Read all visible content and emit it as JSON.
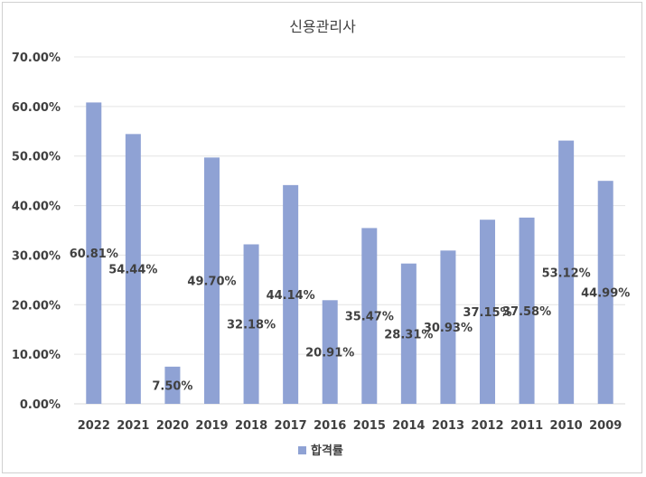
{
  "chart_data": {
    "type": "bar",
    "title": "신용관리사",
    "categories": [
      "2022",
      "2021",
      "2020",
      "2019",
      "2018",
      "2017",
      "2016",
      "2015",
      "2014",
      "2013",
      "2012",
      "2011",
      "2010",
      "2009"
    ],
    "series": [
      {
        "name": "합격률",
        "values": [
          60.81,
          54.44,
          7.5,
          49.7,
          32.18,
          44.14,
          20.91,
          35.47,
          28.31,
          30.93,
          37.15,
          37.58,
          53.12,
          44.99
        ],
        "labels": [
          "60.81%",
          "54.44%",
          "7.50%",
          "49.70%",
          "32.18%",
          "44.14%",
          "20.91%",
          "35.47%",
          "28.31%",
          "30.93%",
          "37.15%",
          "37.58%",
          "53.12%",
          "44.99%"
        ]
      }
    ],
    "y_ticks": [
      "0.00%",
      "10.00%",
      "20.00%",
      "30.00%",
      "40.00%",
      "50.00%",
      "60.00%",
      "70.00%"
    ],
    "ylim": [
      0,
      70
    ],
    "bar_color": "#8FA2D4",
    "grid": true,
    "legend_position": "bottom"
  }
}
